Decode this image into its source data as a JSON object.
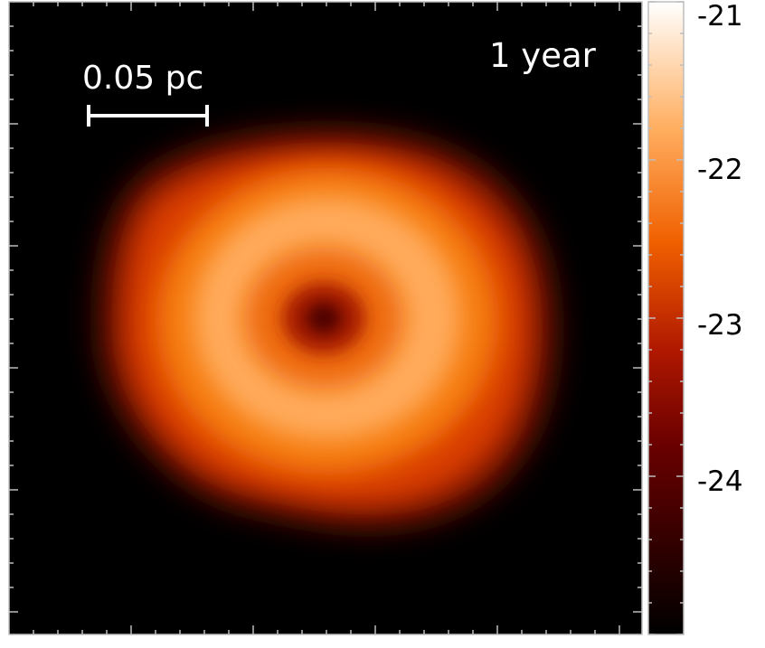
{
  "panel": {
    "time_label": "1 year",
    "scale_bar_label": "0.05 pc"
  },
  "colorbar": {
    "tick_labels": [
      "-21",
      "-22",
      "-23",
      "-24"
    ],
    "tick_values": [
      -21,
      -22,
      -23,
      -24
    ],
    "range": [
      -25,
      -21
    ],
    "colormap": [
      "#000000",
      "#5a0000",
      "#b01500",
      "#ff7a00",
      "#ffb76a",
      "#ffffff"
    ]
  },
  "colors": {
    "background": "#000000",
    "frame": "#bdbdbd"
  }
}
